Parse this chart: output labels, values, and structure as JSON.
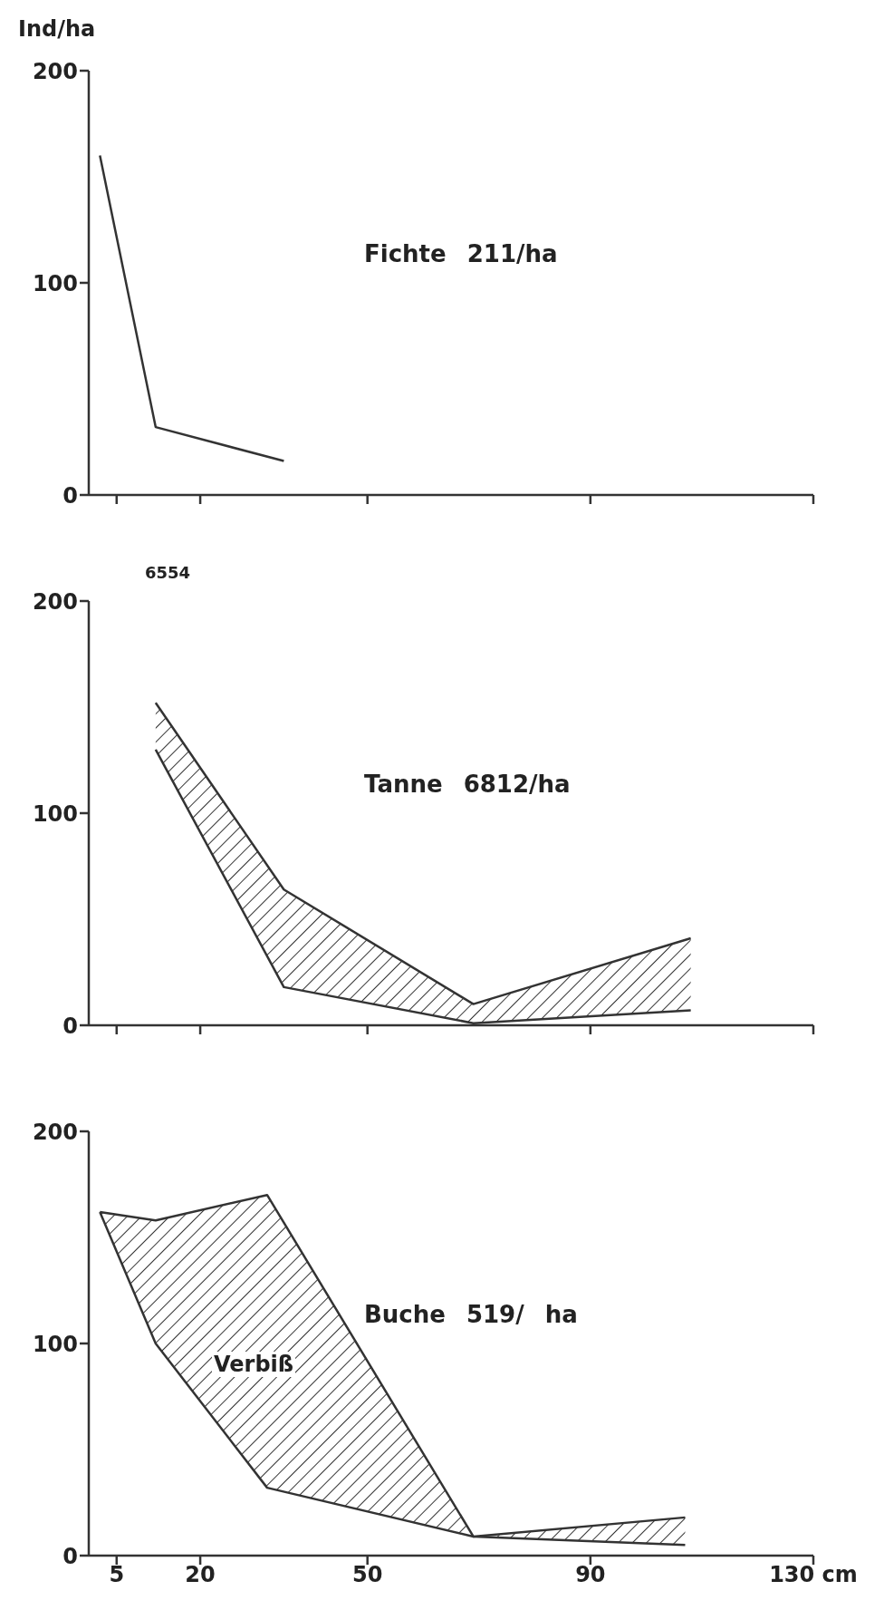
{
  "chart_data": [
    {
      "type": "line",
      "title": "Fichte 211/ha",
      "ylabel": "Ind/ha",
      "x": [
        2,
        12,
        35
      ],
      "xlim": [
        0,
        130
      ],
      "xticks": [
        5,
        20,
        50,
        90,
        130
      ],
      "ylim": [
        0,
        200
      ],
      "yticks": [
        0,
        100,
        200
      ],
      "tick_labels": "y",
      "series": [
        {
          "color": "#333333",
          "values": [
            160,
            32,
            16
          ]
        }
      ]
    },
    {
      "type": "line",
      "title": "Tanne 6812/ha",
      "annotations": [
        "6554"
      ],
      "x": [
        12,
        35,
        69,
        108
      ],
      "xlim": [
        0,
        130
      ],
      "xticks": [
        5,
        20,
        50,
        90,
        130
      ],
      "ylim": [
        0,
        200
      ],
      "yticks": [
        0,
        100,
        200
      ],
      "tick_labels": "y",
      "series": [
        {
          "color": "#333333",
          "values": [
            152,
            64,
            10,
            41
          ],
          "lower": [
            130,
            18,
            1,
            7
          ],
          "upper": [
            152,
            64,
            10,
            41
          ]
        },
        {
          "color": "#333333",
          "values": [
            130,
            18,
            1,
            7
          ]
        }
      ]
    },
    {
      "type": "line",
      "title": "Buche 519/ ha",
      "annotations": [
        "Verbiß"
      ],
      "x": [
        2,
        12,
        32,
        69,
        107
      ],
      "xlim": [
        0,
        130
      ],
      "xticks": [
        5,
        20,
        50,
        90,
        {
          "value": 130,
          "label": "130 cm"
        }
      ],
      "ylim": [
        0,
        200
      ],
      "yticks": [
        0,
        100,
        200
      ],
      "series": [
        {
          "color": "#333333",
          "values": [
            162,
            158,
            170,
            9,
            18
          ],
          "lower": [
            162,
            100,
            32,
            9,
            5
          ],
          "upper": [
            162,
            158,
            170,
            9,
            18
          ]
        },
        {
          "color": "#333333",
          "values": [
            162,
            100,
            32,
            9,
            5
          ]
        }
      ]
    }
  ]
}
